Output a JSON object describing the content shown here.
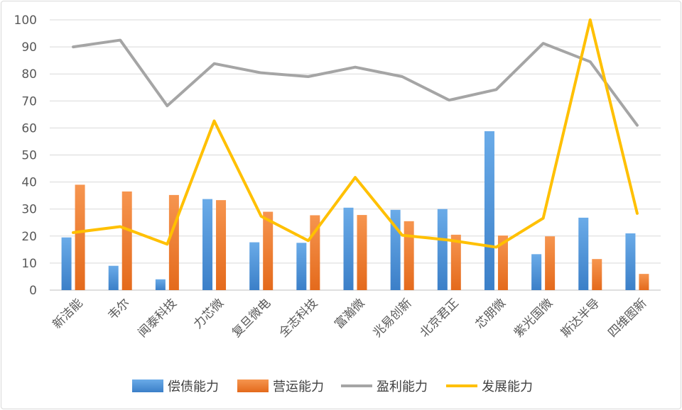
{
  "chart_data": {
    "type": "bar",
    "categories": [
      "新洁能",
      "韦尔",
      "闻泰科技",
      "力芯微",
      "复旦微电",
      "全志科技",
      "富瀚微",
      "兆易创新",
      "北京君正",
      "芯朋微",
      "紫光国微",
      "斯达半导",
      "四维图新"
    ],
    "ylim": [
      0,
      100
    ],
    "yticks": [
      "0",
      "10",
      "20",
      "30",
      "40",
      "50",
      "60",
      "70",
      "80",
      "90",
      "100"
    ],
    "grid": true,
    "legend_position": "bottom",
    "series": [
      {
        "name": "偿债能力",
        "type": "bar",
        "color": "#4a90d9",
        "values": [
          19.5,
          9,
          4,
          33.7,
          17.7,
          17.5,
          30.5,
          29.7,
          30,
          58.8,
          13.3,
          26.8,
          21
        ]
      },
      {
        "name": "营运能力",
        "type": "bar",
        "color": "#ee7d31",
        "values": [
          39,
          36.5,
          35.2,
          33.3,
          29,
          27.7,
          27.8,
          25.5,
          20.5,
          20.2,
          19.9,
          11.5,
          6
        ]
      },
      {
        "name": "盈利能力",
        "type": "line",
        "color": "#a5a5a5",
        "values": [
          90,
          92.5,
          68.2,
          83.8,
          80.4,
          79,
          82.5,
          79,
          70.3,
          74.2,
          91.3,
          84.5,
          61
        ]
      },
      {
        "name": "发展能力",
        "type": "line",
        "color": "#ffc000",
        "values": [
          21.3,
          23.5,
          17,
          62.6,
          27.3,
          18.3,
          41.7,
          20.3,
          18.5,
          15.9,
          26.6,
          100,
          28.4
        ]
      }
    ]
  }
}
